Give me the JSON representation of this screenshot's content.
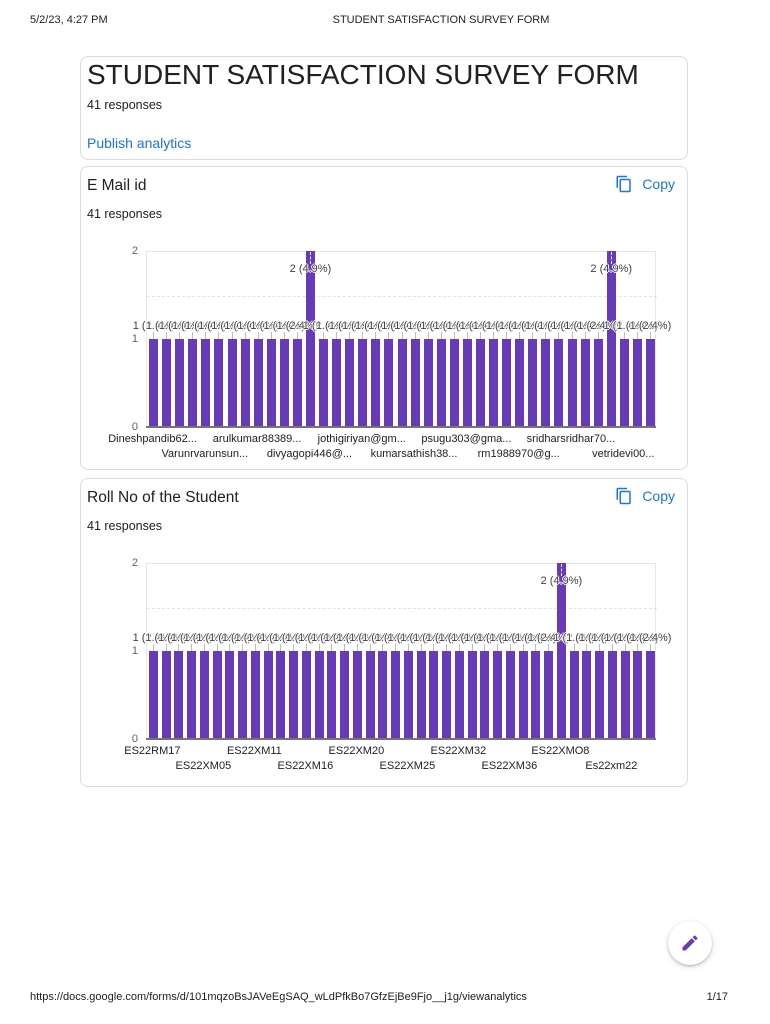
{
  "colors": {
    "bar": "#673ab7",
    "link": "#1a73e8",
    "text": "#202124"
  },
  "header": {
    "datetime": "5/2/23, 4:27 PM",
    "doc_title": "STUDENT SATISFACTION SURVEY FORM"
  },
  "footer": {
    "url": "https://docs.google.com/forms/d/101mqzoBsJAVeEgSAQ_wLdPfkBo7GfzEjBe9Fjo__j1g/viewanalytics",
    "page_number": "1/17"
  },
  "summary_card": {
    "title": "STUDENT SATISFACTION SURVEY FORM",
    "responses": "41 responses",
    "publish_link": "Publish analytics"
  },
  "charts": [
    {
      "title": "E Mail id",
      "responses": "41 responses",
      "copy_label": "Copy",
      "chart_data": {
        "type": "bar",
        "title": "E Mail id",
        "ylim": [
          0,
          2
        ],
        "yticks": [
          0,
          1,
          2
        ],
        "gridlines": [
          1.5
        ],
        "values": [
          1,
          1,
          1,
          1,
          1,
          1,
          1,
          1,
          1,
          1,
          1,
          1,
          2,
          1,
          1,
          1,
          1,
          1,
          1,
          1,
          1,
          1,
          1,
          1,
          1,
          1,
          1,
          1,
          1,
          1,
          1,
          1,
          1,
          1,
          1,
          2,
          1,
          1,
          1
        ],
        "annotations": {
          "1": "1 (2.4%)",
          "2": "2 (4.9%)"
        },
        "x_tick_labels": [
          {
            "text": "Dineshpandib62...",
            "bar": 1,
            "row": 1
          },
          {
            "text": "Varunrvarunsun...",
            "bar": 5,
            "row": 2
          },
          {
            "text": "arulkumar88389...",
            "bar": 9,
            "row": 1
          },
          {
            "text": "divyagopi446@...",
            "bar": 13,
            "row": 2
          },
          {
            "text": "jothigiriyan@gm...",
            "bar": 17,
            "row": 1
          },
          {
            "text": "kumarsathish38...",
            "bar": 21,
            "row": 2
          },
          {
            "text": "psugu303@gma...",
            "bar": 25,
            "row": 1
          },
          {
            "text": "rm1988970@g...",
            "bar": 29,
            "row": 2
          },
          {
            "text": "sridharsridhar70...",
            "bar": 33,
            "row": 1
          },
          {
            "text": "vetridevi00...",
            "bar": 37,
            "row": 2
          }
        ]
      }
    },
    {
      "title": "Roll No of the Student",
      "responses": "41 responses",
      "copy_label": "Copy",
      "chart_data": {
        "type": "bar",
        "title": "Roll No of the Student",
        "ylim": [
          0,
          2
        ],
        "yticks": [
          0,
          1,
          2
        ],
        "gridlines": [
          1.5
        ],
        "values": [
          1,
          1,
          1,
          1,
          1,
          1,
          1,
          1,
          1,
          1,
          1,
          1,
          1,
          1,
          1,
          1,
          1,
          1,
          1,
          1,
          1,
          1,
          1,
          1,
          1,
          1,
          1,
          1,
          1,
          1,
          1,
          1,
          2,
          1,
          1,
          1,
          1,
          1,
          1,
          1
        ],
        "annotations": {
          "1": "1 (2.4%)",
          "2": "2 (4.9%)"
        },
        "x_tick_labels": [
          {
            "text": "ES22RM17",
            "bar": 1,
            "row": 1
          },
          {
            "text": "ES22XM05",
            "bar": 5,
            "row": 2
          },
          {
            "text": "ES22XM11",
            "bar": 9,
            "row": 1
          },
          {
            "text": "ES22XM16",
            "bar": 13,
            "row": 2
          },
          {
            "text": "ES22XM20",
            "bar": 17,
            "row": 1
          },
          {
            "text": "ES22XM25",
            "bar": 21,
            "row": 2
          },
          {
            "text": "ES22XM32",
            "bar": 25,
            "row": 1
          },
          {
            "text": "ES22XM36",
            "bar": 29,
            "row": 2
          },
          {
            "text": "ES22XMO8",
            "bar": 33,
            "row": 1
          },
          {
            "text": "Es22xm22",
            "bar": 37,
            "row": 2
          }
        ]
      }
    }
  ]
}
